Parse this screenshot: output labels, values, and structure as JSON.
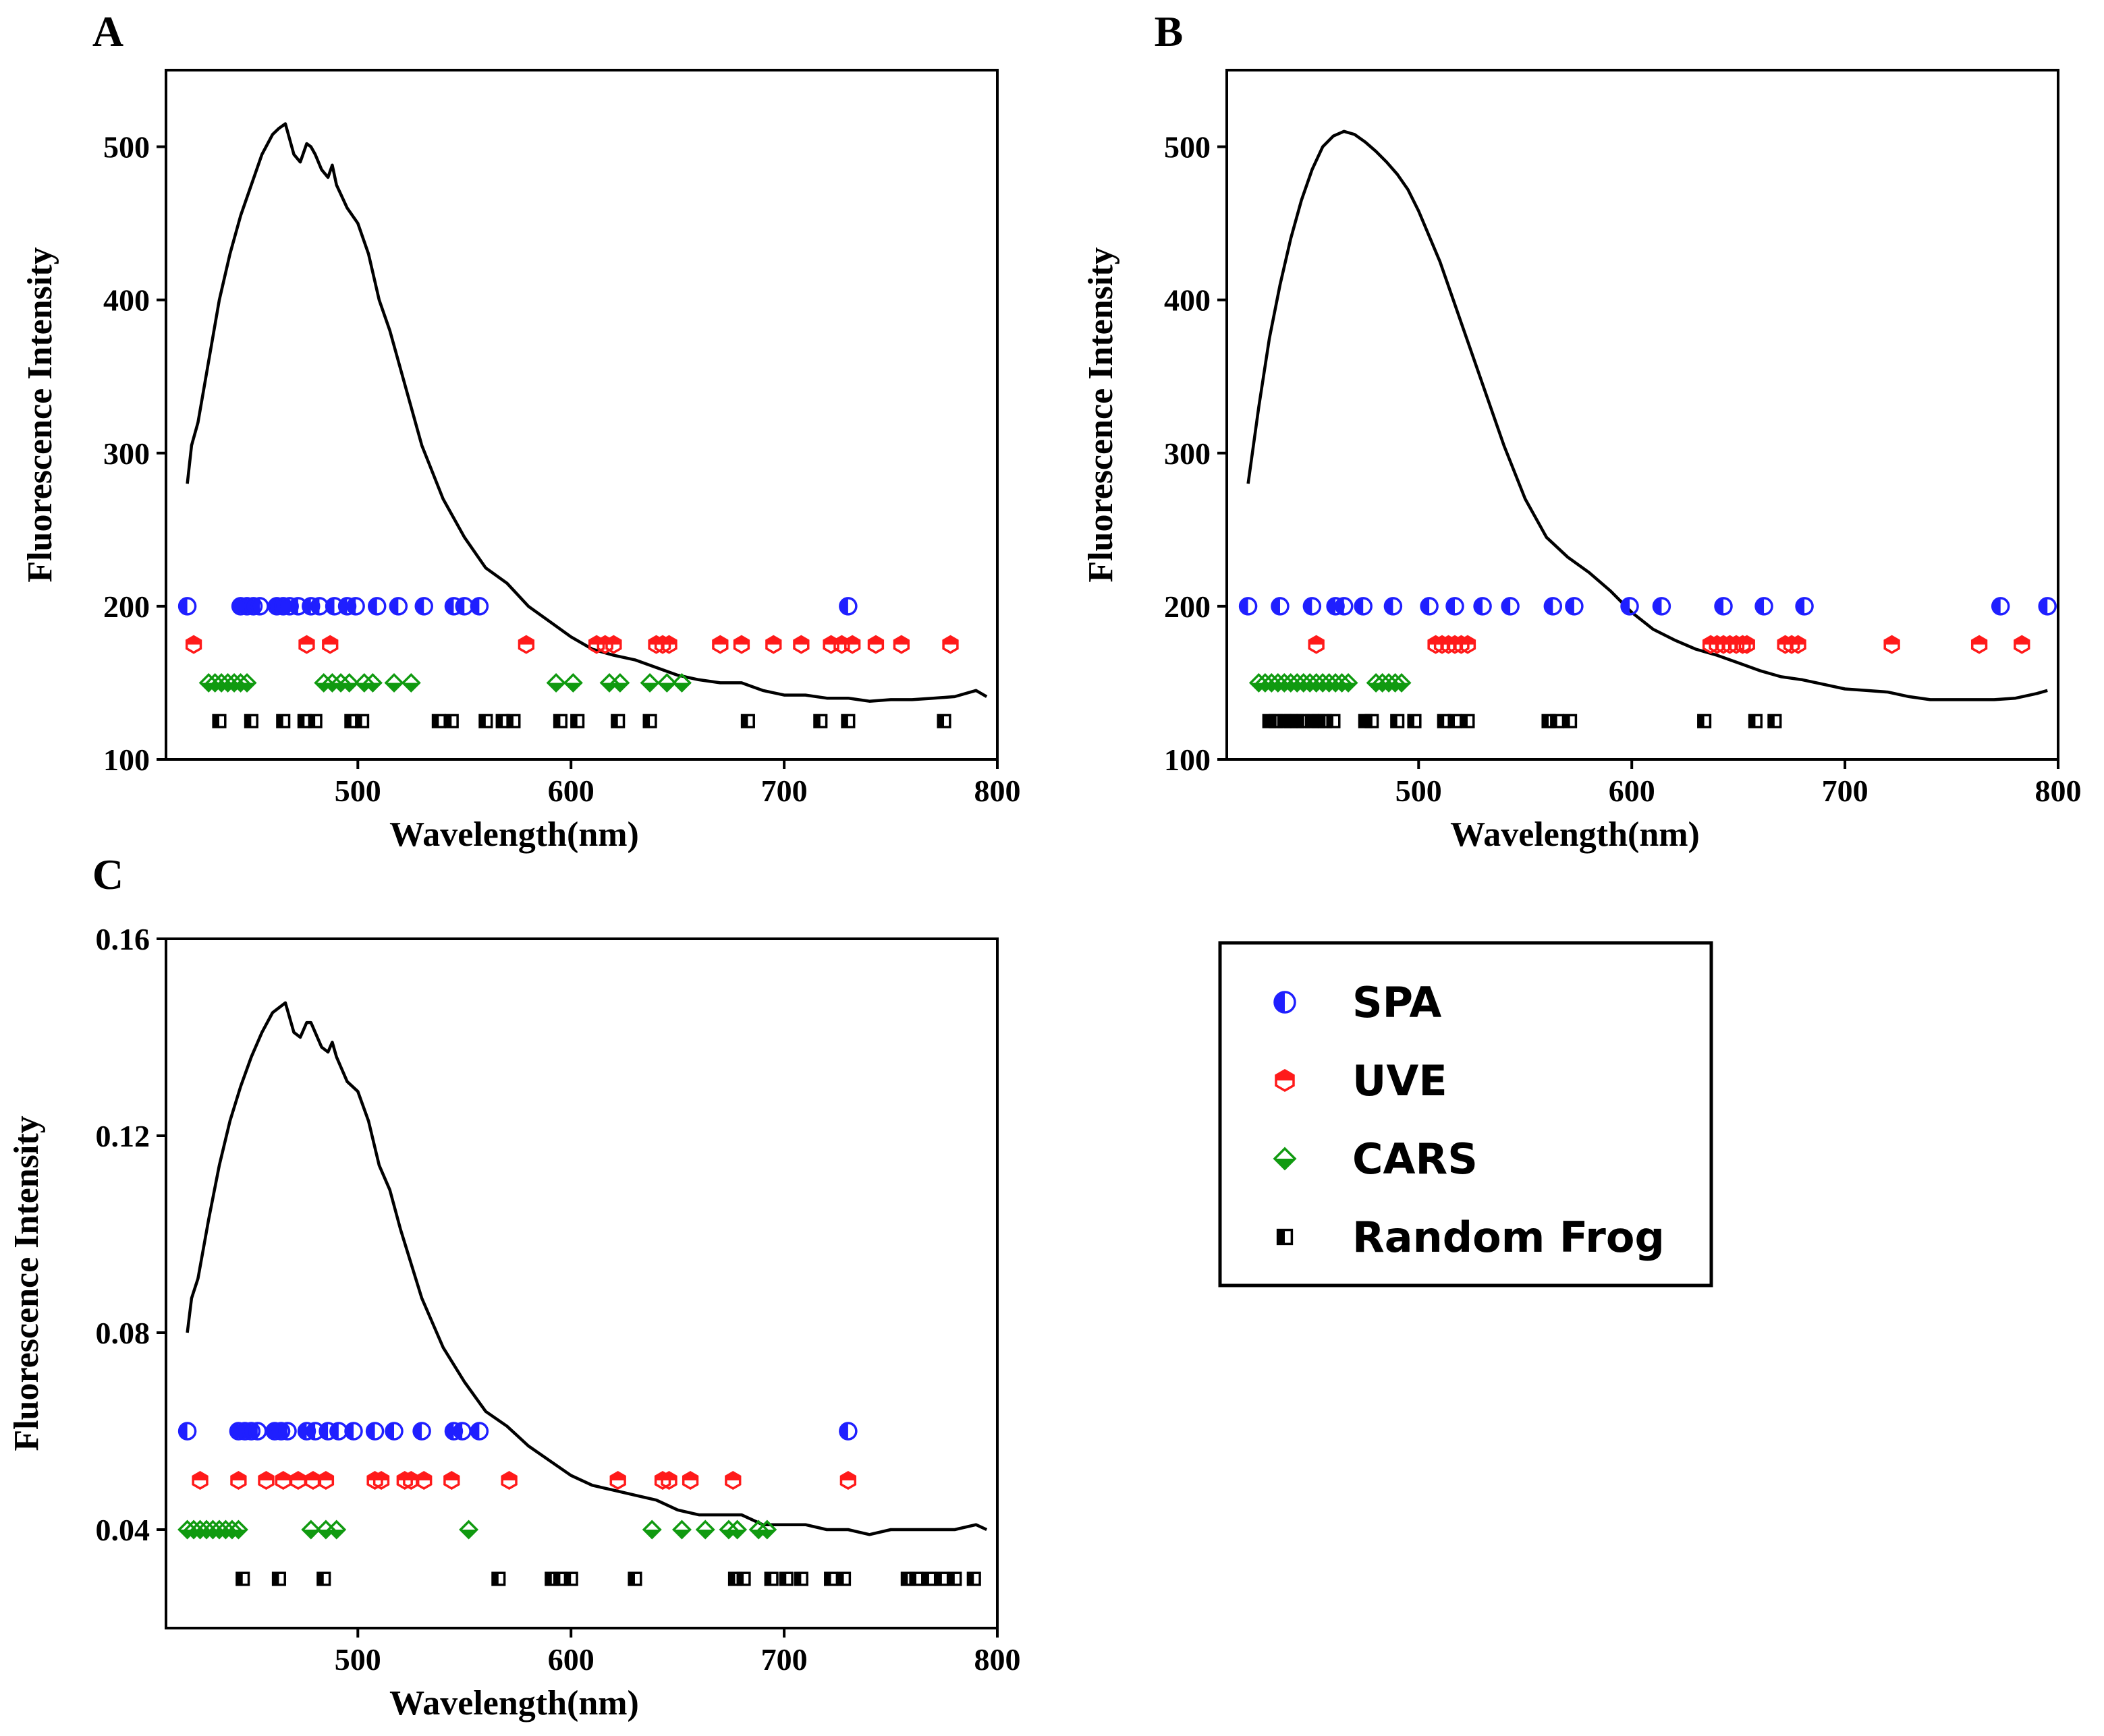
{
  "figure": {
    "legend": {
      "placement": "right of panel C",
      "entries": [
        {
          "label": "SPA",
          "color": "#1f1fff",
          "marker": "half-filled-circle"
        },
        {
          "label": "UVE",
          "color": "#ff1a1a",
          "marker": "half-filled-hexagon"
        },
        {
          "label": "CARS",
          "color": "#109a10",
          "marker": "half-filled-diamond"
        },
        {
          "label": "Random Frog",
          "color": "#000000",
          "marker": "half-filled-square"
        }
      ]
    }
  },
  "chart_data": [
    {
      "panel": "A",
      "type": "scatter",
      "xlabel": "Wavelength(nm)",
      "ylabel": "Fluorescence Intensity",
      "xlim": [
        410,
        800
      ],
      "ylim": [
        100,
        550
      ],
      "xticks": [
        500,
        600,
        700,
        800
      ],
      "yticks": [
        100,
        200,
        300,
        400,
        500
      ],
      "tick_labels_y": [
        "100",
        "200",
        "300",
        "400",
        "500"
      ],
      "grid": false,
      "line": {
        "name": "",
        "x": [
          420,
          422,
          425,
          430,
          435,
          440,
          445,
          450,
          455,
          460,
          463,
          466,
          468,
          470,
          473,
          476,
          478,
          480,
          483,
          486,
          488,
          490,
          495,
          500,
          505,
          510,
          515,
          520,
          525,
          530,
          540,
          550,
          560,
          570,
          580,
          590,
          600,
          610,
          620,
          630,
          640,
          650,
          660,
          670,
          680,
          690,
          700,
          710,
          720,
          730,
          740,
          750,
          760,
          770,
          780,
          790,
          795
        ],
        "y": [
          280,
          305,
          320,
          360,
          400,
          430,
          455,
          475,
          495,
          508,
          512,
          515,
          505,
          495,
          490,
          502,
          500,
          495,
          485,
          480,
          488,
          475,
          460,
          450,
          430,
          400,
          380,
          355,
          330,
          305,
          270,
          245,
          225,
          215,
          200,
          190,
          180,
          172,
          168,
          165,
          160,
          155,
          152,
          150,
          150,
          145,
          142,
          142,
          140,
          140,
          138,
          139,
          139,
          140,
          141,
          145,
          141
        ]
      },
      "series": [
        {
          "name": "SPA",
          "y_level": 200,
          "x": [
            420,
            445,
            448,
            451,
            454,
            462,
            465,
            468,
            472,
            478,
            482,
            489,
            495,
            499,
            509,
            519,
            531,
            545,
            550,
            557,
            730
          ]
        },
        {
          "name": "UVE",
          "y_level": 175,
          "x": [
            423,
            476,
            487,
            579,
            612,
            616,
            620,
            640,
            643,
            646,
            670,
            680,
            695,
            708,
            722,
            727,
            732,
            743,
            755,
            778
          ]
        },
        {
          "name": "CARS",
          "y_level": 150,
          "x": [
            430,
            433,
            436,
            439,
            442,
            445,
            448,
            484,
            488,
            492,
            496,
            503,
            507,
            517,
            525,
            593,
            601,
            618,
            623,
            637,
            645,
            652
          ]
        },
        {
          "name": "Random Frog",
          "y_level": 125,
          "x": [
            435,
            450,
            465,
            475,
            480,
            497,
            502,
            538,
            544,
            560,
            568,
            573,
            595,
            603,
            622,
            637,
            683,
            717,
            730,
            775
          ]
        }
      ]
    },
    {
      "panel": "B",
      "type": "scatter",
      "xlabel": "Wavelength(nm)",
      "ylabel": "Fluorescence Intensity",
      "xlim": [
        410,
        800
      ],
      "ylim": [
        100,
        550
      ],
      "xticks": [
        500,
        600,
        700,
        800
      ],
      "yticks": [
        100,
        200,
        300,
        400,
        500
      ],
      "tick_labels_y": [
        "100",
        "200",
        "300",
        "400",
        "500"
      ],
      "grid": false,
      "line": {
        "name": "",
        "x": [
          420,
          425,
          430,
          435,
          440,
          445,
          450,
          455,
          460,
          465,
          470,
          475,
          480,
          485,
          490,
          495,
          500,
          510,
          520,
          530,
          540,
          550,
          560,
          570,
          580,
          590,
          600,
          610,
          620,
          630,
          640,
          650,
          660,
          670,
          680,
          690,
          700,
          710,
          720,
          730,
          740,
          750,
          760,
          770,
          780,
          790,
          795
        ],
        "y": [
          280,
          330,
          375,
          410,
          440,
          465,
          485,
          500,
          507,
          510,
          508,
          503,
          497,
          490,
          482,
          472,
          458,
          425,
          385,
          345,
          305,
          270,
          245,
          232,
          222,
          210,
          196,
          185,
          178,
          172,
          168,
          163,
          158,
          154,
          152,
          149,
          146,
          145,
          144,
          141,
          139,
          139,
          139,
          139,
          140,
          143,
          145
        ]
      },
      "series": [
        {
          "name": "SPA",
          "y_level": 200,
          "x": [
            420,
            435,
            450,
            461,
            465,
            474,
            488,
            505,
            517,
            530,
            543,
            563,
            573,
            599,
            614,
            643,
            662,
            681,
            773,
            795
          ]
        },
        {
          "name": "UVE",
          "y_level": 175,
          "x": [
            452,
            508,
            511,
            514,
            517,
            520,
            523,
            637,
            640,
            643,
            646,
            649,
            652,
            654,
            672,
            675,
            678,
            722,
            763,
            783
          ]
        },
        {
          "name": "CARS",
          "y_level": 150,
          "x": [
            425,
            428,
            431,
            434,
            437,
            440,
            443,
            446,
            449,
            452,
            455,
            458,
            461,
            464,
            467,
            480,
            483,
            486,
            489,
            492
          ]
        },
        {
          "name": "Random Frog",
          "y_level": 125,
          "x": [
            430,
            433,
            437,
            440,
            443,
            446,
            450,
            453,
            456,
            460,
            475,
            478,
            490,
            498,
            512,
            517,
            523,
            561,
            565,
            571,
            634,
            658,
            667
          ]
        }
      ]
    },
    {
      "panel": "C",
      "type": "scatter",
      "xlabel": "Wavelength(nm)",
      "ylabel": "Fluorescence Intensity",
      "xlim": [
        410,
        800
      ],
      "ylim": [
        0.02,
        0.16
      ],
      "xticks": [
        500,
        600,
        700,
        800
      ],
      "yticks": [
        0.04,
        0.08,
        0.12,
        0.16
      ],
      "tick_labels_y": [
        "0.04",
        "0.08",
        "0.12",
        "0.16"
      ],
      "grid": false,
      "line": {
        "name": "",
        "x": [
          420,
          422,
          425,
          430,
          435,
          440,
          445,
          450,
          455,
          460,
          463,
          466,
          468,
          470,
          473,
          476,
          478,
          480,
          483,
          486,
          488,
          490,
          495,
          500,
          505,
          510,
          515,
          520,
          525,
          530,
          540,
          550,
          560,
          570,
          580,
          590,
          600,
          610,
          620,
          630,
          640,
          650,
          660,
          670,
          680,
          690,
          700,
          710,
          720,
          730,
          740,
          750,
          760,
          770,
          780,
          790,
          795
        ],
        "y": [
          0.08,
          0.087,
          0.091,
          0.103,
          0.114,
          0.123,
          0.13,
          0.136,
          0.141,
          0.145,
          0.146,
          0.147,
          0.144,
          0.141,
          0.14,
          0.143,
          0.143,
          0.141,
          0.138,
          0.137,
          0.139,
          0.136,
          0.131,
          0.129,
          0.123,
          0.114,
          0.109,
          0.101,
          0.094,
          0.087,
          0.077,
          0.07,
          0.064,
          0.061,
          0.057,
          0.054,
          0.051,
          0.049,
          0.048,
          0.047,
          0.046,
          0.044,
          0.043,
          0.043,
          0.043,
          0.041,
          0.041,
          0.041,
          0.04,
          0.04,
          0.039,
          0.04,
          0.04,
          0.04,
          0.04,
          0.041,
          0.04
        ]
      },
      "series": [
        {
          "name": "SPA",
          "y_level": 0.06,
          "x": [
            420,
            444,
            447,
            450,
            453,
            461,
            464,
            467,
            476,
            480,
            486,
            491,
            498,
            508,
            517,
            530,
            545,
            549,
            557,
            730
          ]
        },
        {
          "name": "UVE",
          "y_level": 0.05,
          "x": [
            426,
            444,
            457,
            465,
            472,
            479,
            485,
            508,
            511,
            522,
            525,
            531,
            544,
            571,
            622,
            643,
            646,
            656,
            676,
            730
          ]
        },
        {
          "name": "CARS",
          "y_level": 0.04,
          "x": [
            420,
            423,
            426,
            429,
            432,
            435,
            438,
            441,
            444,
            478,
            485,
            490,
            552,
            638,
            652,
            663,
            674,
            678,
            688,
            692
          ]
        },
        {
          "name": "Random Frog",
          "y_level": 0.03,
          "x": [
            446,
            463,
            484,
            566,
            591,
            595,
            600,
            630,
            677,
            681,
            694,
            701,
            708,
            722,
            728,
            758,
            762,
            768,
            774,
            780,
            789
          ]
        }
      ]
    }
  ]
}
